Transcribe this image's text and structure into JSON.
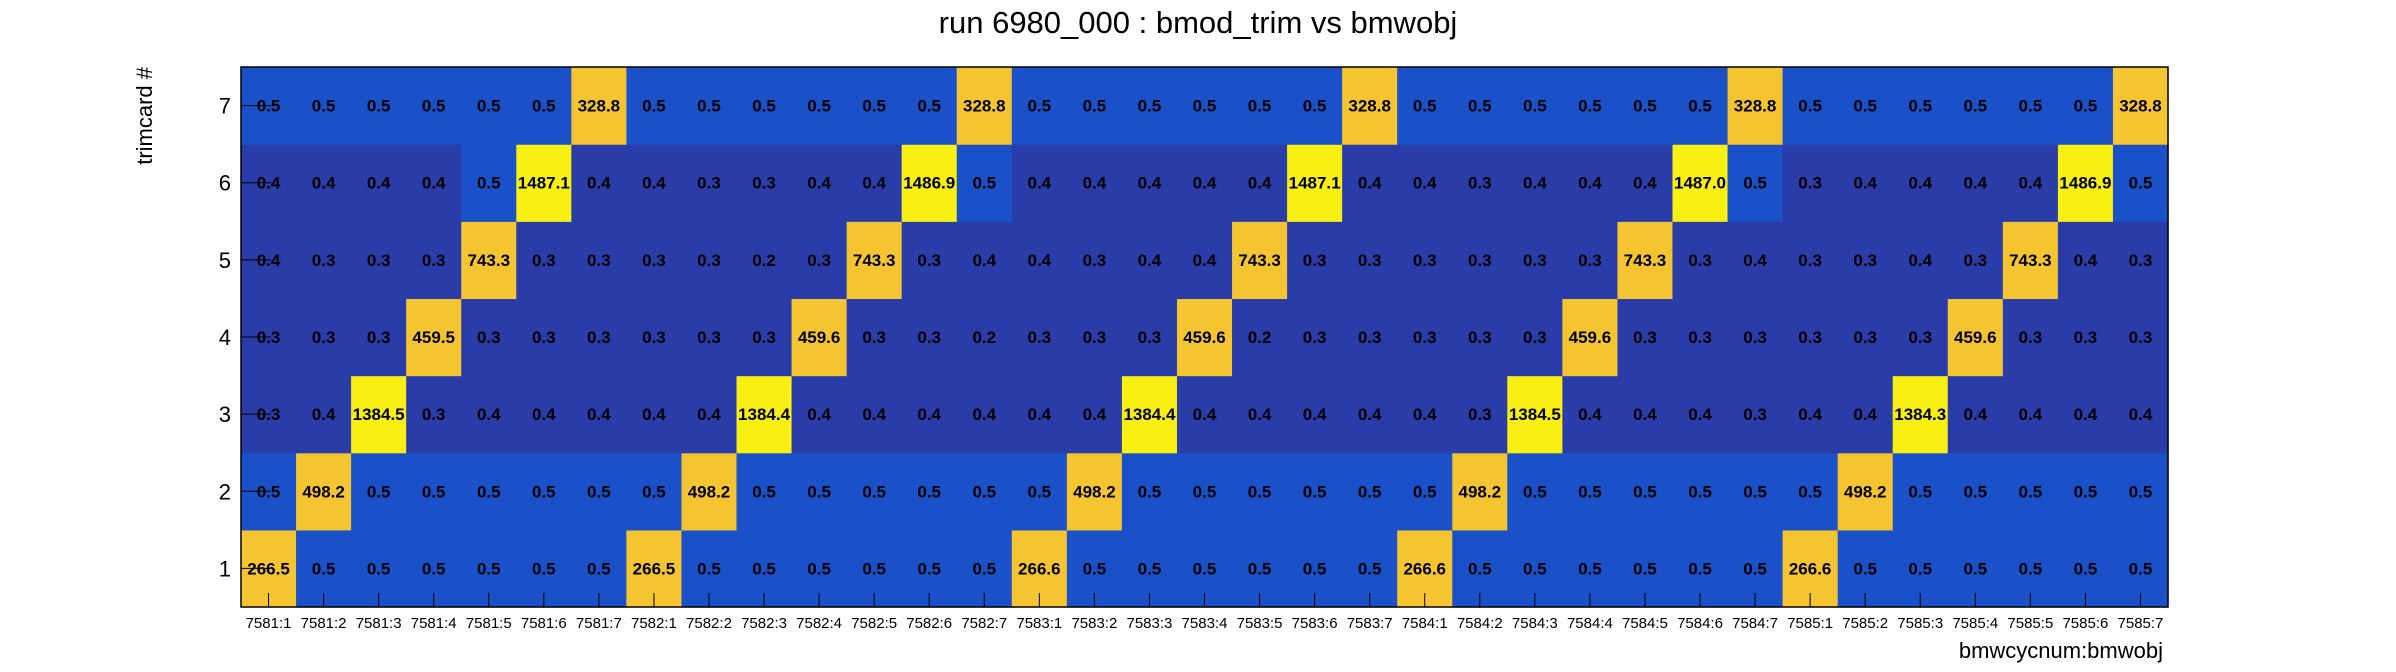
{
  "chart_data": {
    "type": "heatmap",
    "title": "run 6980_000 : bmod_trim vs bmwobj",
    "xlabel": "bmwcycnum:bmwobj",
    "ylabel": "trimcard #",
    "x_categories": [
      "7581:1",
      "7581:2",
      "7581:3",
      "7581:4",
      "7581:5",
      "7581:6",
      "7581:7",
      "7582:1",
      "7582:2",
      "7582:3",
      "7582:4",
      "7582:5",
      "7582:6",
      "7582:7",
      "7583:1",
      "7583:2",
      "7583:3",
      "7583:4",
      "7583:5",
      "7583:6",
      "7583:7",
      "7584:1",
      "7584:2",
      "7584:3",
      "7584:4",
      "7584:5",
      "7584:6",
      "7584:7",
      "7585:1",
      "7585:2",
      "7585:3",
      "7585:4",
      "7585:5",
      "7585:6",
      "7585:7"
    ],
    "y_categories": [
      "1",
      "2",
      "3",
      "4",
      "5",
      "6",
      "7"
    ],
    "values": [
      [
        "266.5",
        "0.5",
        "0.5",
        "0.5",
        "0.5",
        "0.5",
        "0.5",
        "266.5",
        "0.5",
        "0.5",
        "0.5",
        "0.5",
        "0.5",
        "0.5",
        "266.6",
        "0.5",
        "0.5",
        "0.5",
        "0.5",
        "0.5",
        "0.5",
        "266.6",
        "0.5",
        "0.5",
        "0.5",
        "0.5",
        "0.5",
        "0.5",
        "266.6",
        "0.5",
        "0.5",
        "0.5",
        "0.5",
        "0.5",
        "0.5"
      ],
      [
        "0.5",
        "498.2",
        "0.5",
        "0.5",
        "0.5",
        "0.5",
        "0.5",
        "0.5",
        "498.2",
        "0.5",
        "0.5",
        "0.5",
        "0.5",
        "0.5",
        "0.5",
        "498.2",
        "0.5",
        "0.5",
        "0.5",
        "0.5",
        "0.5",
        "0.5",
        "498.2",
        "0.5",
        "0.5",
        "0.5",
        "0.5",
        "0.5",
        "0.5",
        "498.2",
        "0.5",
        "0.5",
        "0.5",
        "0.5",
        "0.5"
      ],
      [
        "0.3",
        "0.4",
        "1384.5",
        "0.3",
        "0.4",
        "0.4",
        "0.4",
        "0.4",
        "0.4",
        "1384.4",
        "0.4",
        "0.4",
        "0.4",
        "0.4",
        "0.4",
        "0.4",
        "1384.4",
        "0.4",
        "0.4",
        "0.4",
        "0.4",
        "0.4",
        "0.3",
        "1384.5",
        "0.4",
        "0.4",
        "0.4",
        "0.3",
        "0.4",
        "0.4",
        "1384.3",
        "0.4",
        "0.4",
        "0.4",
        "0.4"
      ],
      [
        "0.3",
        "0.3",
        "0.3",
        "459.5",
        "0.3",
        "0.3",
        "0.3",
        "0.3",
        "0.3",
        "0.3",
        "459.6",
        "0.3",
        "0.3",
        "0.2",
        "0.3",
        "0.3",
        "0.3",
        "459.6",
        "0.2",
        "0.3",
        "0.3",
        "0.3",
        "0.3",
        "0.3",
        "459.6",
        "0.3",
        "0.3",
        "0.3",
        "0.3",
        "0.3",
        "0.3",
        "459.6",
        "0.3",
        "0.3",
        "0.3"
      ],
      [
        "0.4",
        "0.3",
        "0.3",
        "0.3",
        "743.3",
        "0.3",
        "0.3",
        "0.3",
        "0.3",
        "0.2",
        "0.3",
        "743.3",
        "0.3",
        "0.4",
        "0.4",
        "0.3",
        "0.4",
        "0.4",
        "743.3",
        "0.3",
        "0.3",
        "0.3",
        "0.3",
        "0.3",
        "0.3",
        "743.3",
        "0.3",
        "0.4",
        "0.3",
        "0.3",
        "0.4",
        "0.3",
        "743.3",
        "0.4",
        "0.3"
      ],
      [
        "0.4",
        "0.4",
        "0.4",
        "0.4",
        "0.5",
        "1487.1",
        "0.4",
        "0.4",
        "0.3",
        "0.3",
        "0.4",
        "0.4",
        "1486.9",
        "0.5",
        "0.4",
        "0.4",
        "0.4",
        "0.4",
        "0.4",
        "1487.1",
        "0.4",
        "0.4",
        "0.3",
        "0.4",
        "0.4",
        "0.4",
        "1487.0",
        "0.5",
        "0.3",
        "0.4",
        "0.4",
        "0.4",
        "0.4",
        "1486.9",
        "0.5"
      ],
      [
        "0.5",
        "0.5",
        "0.5",
        "0.5",
        "0.5",
        "0.5",
        "328.8",
        "0.5",
        "0.5",
        "0.5",
        "0.5",
        "0.5",
        "0.5",
        "328.8",
        "0.5",
        "0.5",
        "0.5",
        "0.5",
        "0.5",
        "0.5",
        "328.8",
        "0.5",
        "0.5",
        "0.5",
        "0.5",
        "0.5",
        "0.5",
        "328.8",
        "0.5",
        "0.5",
        "0.5",
        "0.5",
        "0.5",
        "0.5",
        "328.8"
      ]
    ],
    "colors": {
      "mid_blue": "#1a50c8",
      "dark_blue": "#2a3ca8",
      "orange": "#f5c431",
      "yellow": "#f8f013",
      "frame": "#000000"
    },
    "color_scale": "palette by value",
    "legend": "none",
    "grid": false
  }
}
